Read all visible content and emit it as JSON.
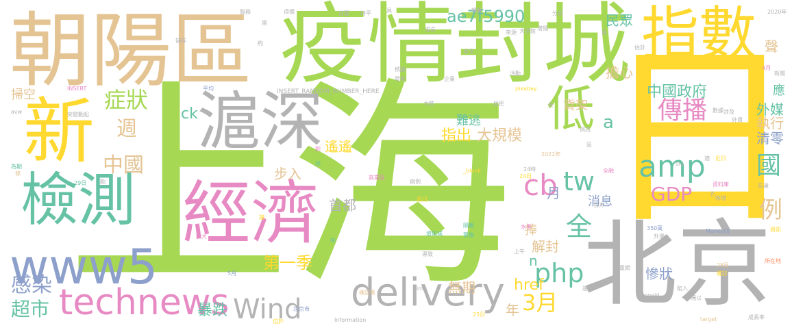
{
  "palette": {
    "green": "#a6d854",
    "tan": "#e5c494",
    "yellow": "#ffd92f",
    "gray": "#b3b3b3",
    "teal": "#66c2a5",
    "blue": "#8da0cb",
    "pink": "#e78ac3",
    "orange": "#fc8d62"
  },
  "words": [
    {
      "text": "上海",
      "color": "green",
      "vertical": false
    },
    {
      "text": "日",
      "color": "yellow",
      "vertical": false
    },
    {
      "text": "疫情封城",
      "color": "green",
      "vertical": false
    },
    {
      "text": "朝陽區",
      "color": "tan",
      "vertical": false
    },
    {
      "text": "指數",
      "color": "yellow",
      "vertical": false
    },
    {
      "text": "北京",
      "color": "gray",
      "vertical": false
    },
    {
      "text": "新",
      "color": "yellow",
      "vertical": false
    },
    {
      "text": "滬深",
      "color": "gray",
      "vertical": false
    },
    {
      "text": "經濟",
      "color": "pink",
      "vertical": false
    },
    {
      "text": "檢測",
      "color": "teal",
      "vertical": false
    },
    {
      "text": "www5",
      "color": "blue",
      "vertical": false
    },
    {
      "text": "technews",
      "color": "pink",
      "vertical": false
    },
    {
      "text": "delivery",
      "color": "gray",
      "vertical": false
    },
    {
      "text": "低",
      "color": "green",
      "vertical": false
    },
    {
      "text": "傳播",
      "color": "pink",
      "vertical": false
    },
    {
      "text": "amp",
      "color": "teal",
      "vertical": false
    },
    {
      "text": "www",
      "color": "green",
      "vertical": false
    },
    {
      "text": "php",
      "color": "teal",
      "vertical": false
    },
    {
      "text": "Wind",
      "color": "gray",
      "vertical": false
    },
    {
      "text": "cb",
      "color": "pink",
      "vertical": false
    },
    {
      "text": "tw",
      "color": "teal",
      "vertical": false
    },
    {
      "text": "GDP",
      "color": "pink",
      "vertical": false
    },
    {
      "text": "中國政府",
      "color": "teal",
      "vertical": false
    },
    {
      "text": "症狀",
      "color": "green",
      "vertical": false
    },
    {
      "text": "中國",
      "color": "tan",
      "vertical": false
    },
    {
      "text": "週",
      "color": "tan",
      "vertical": false
    },
    {
      "text": "感染",
      "color": "blue",
      "vertical": false
    },
    {
      "text": "超市",
      "color": "teal",
      "vertical": false
    },
    {
      "text": "暴跌",
      "color": "teal",
      "vertical": false
    },
    {
      "text": "3月",
      "color": "yellow",
      "vertical": false
    },
    {
      "text": "ae7f5990",
      "color": "teal",
      "vertical": false
    },
    {
      "text": "第一季",
      "color": "yellow",
      "vertical": false
    },
    {
      "text": "指出",
      "color": "yellow",
      "vertical": false
    },
    {
      "text": "大規模",
      "color": "tan",
      "vertical": false
    },
    {
      "text": "國",
      "color": "teal",
      "vertical": true
    },
    {
      "text": "例",
      "color": "tan",
      "vertical": false
    },
    {
      "text": "全",
      "color": "teal",
      "vertical": false
    },
    {
      "text": "首都",
      "color": "gray",
      "vertical": false
    },
    {
      "text": "步入",
      "color": "tan",
      "vertical": false
    },
    {
      "text": "掃空",
      "color": "tan",
      "vertical": false
    },
    {
      "text": "ck",
      "color": "teal",
      "vertical": false
    },
    {
      "text": "a",
      "color": "teal",
      "vertical": false
    },
    {
      "text": "href",
      "color": "yellow",
      "vertical": false
    },
    {
      "text": "無期",
      "color": "tan",
      "vertical": false
    },
    {
      "text": "年",
      "color": "tan",
      "vertical": false
    },
    {
      "text": "n",
      "color": "teal",
      "vertical": false
    },
    {
      "text": "月",
      "color": "blue",
      "vertical": false
    },
    {
      "text": "遙遙",
      "color": "yellow",
      "vertical": false
    },
    {
      "text": "難逃",
      "color": "teal",
      "vertical": false
    },
    {
      "text": "民眾",
      "color": "teal",
      "vertical": false
    },
    {
      "text": "擔心",
      "color": "tan",
      "vertical": false
    },
    {
      "text": "外媒",
      "color": "teal",
      "vertical": false
    },
    {
      "text": "執行",
      "color": "tan",
      "vertical": false
    },
    {
      "text": "清零",
      "color": "blue",
      "vertical": false
    },
    {
      "text": "解封",
      "color": "tan",
      "vertical": false
    },
    {
      "text": "慘狀",
      "color": "blue",
      "vertical": false
    },
    {
      "text": "消息",
      "color": "blue",
      "vertical": false
    },
    {
      "text": "貨架",
      "color": "tan",
      "vertical": false
    },
    {
      "text": "聲",
      "color": "tan",
      "vertical": false
    },
    {
      "text": "應",
      "color": "teal",
      "vertical": false
    },
    {
      "text": "捧",
      "color": "tan",
      "vertical": false
    },
    {
      "text": "INSERT_RANDOM_NUMBER_HERE",
      "color": "gray",
      "vertical": false
    },
    {
      "text": "MoneyDJ",
      "color": "blue",
      "vertical": false
    },
    {
      "text": "2020年",
      "color": "gray",
      "vertical": false
    },
    {
      "text": "pixabay",
      "color": "yellow",
      "vertical": false
    },
    {
      "text": "Information",
      "color": "gray",
      "vertical": false
    },
    {
      "text": "zoneid",
      "color": "gray",
      "vertical": false
    },
    {
      "text": "target",
      "color": "tan",
      "vertical": false
    },
    {
      "text": "成長率",
      "color": "gray",
      "vertical": false
    },
    {
      "text": "350萬",
      "color": "blue",
      "vertical": false
    },
    {
      "text": "_blank",
      "color": "yellow",
      "vertical": false
    },
    {
      "text": "INSERT",
      "color": "pink",
      "vertical": false
    },
    {
      "text": "avw",
      "color": "gray",
      "vertical": false
    },
    {
      "text": "突發動起",
      "color": "gray",
      "vertical": false
    },
    {
      "text": "為期",
      "color": "teal",
      "vertical": false
    },
    {
      "text": "條",
      "color": "tan",
      "vertical": false
    },
    {
      "text": "29日",
      "color": "teal",
      "vertical": false
    },
    {
      "text": "2022年",
      "color": "tan",
      "vertical": false
    },
    {
      "text": "24時",
      "color": "gray",
      "vertical": false
    },
    {
      "text": "24日",
      "color": "yellow",
      "vertical": false
    },
    {
      "text": "28日",
      "color": "tan",
      "vertical": false
    },
    {
      "text": "25日",
      "color": "yellow",
      "vertical": false
    },
    {
      "text": "4月",
      "color": "pink",
      "vertical": false
    },
    {
      "text": "5月",
      "color": "blue",
      "vertical": false
    },
    {
      "text": "官方",
      "color": "gray",
      "vertical": false
    },
    {
      "text": "全融",
      "color": "pink",
      "vertical": false
    },
    {
      "text": "資料庫",
      "color": "pink",
      "vertical": false
    },
    {
      "text": "長遠",
      "color": "gray",
      "vertical": false
    },
    {
      "text": "新增",
      "color": "gray",
      "vertical": false
    },
    {
      "text": "升遷",
      "color": "gray",
      "vertical": false
    },
    {
      "text": "資訊",
      "color": "yellow",
      "vertical": false
    },
    {
      "text": "所在地",
      "color": "orange",
      "vertical": false
    },
    {
      "text": "確診",
      "color": "yellow",
      "vertical": false
    },
    {
      "text": "確診者",
      "color": "tan",
      "vertical": false
    },
    {
      "text": "水準",
      "color": "pink",
      "vertical": false
    },
    {
      "text": "上午",
      "color": "gray",
      "vertical": false
    },
    {
      "text": "導致",
      "color": "gray",
      "vertical": false
    },
    {
      "text": "增無減",
      "color": "teal",
      "vertical": false
    },
    {
      "text": "實施",
      "color": "teal",
      "vertical": false
    },
    {
      "text": "隔離",
      "color": "teal",
      "vertical": false
    },
    {
      "text": "病例",
      "color": "gray",
      "vertical": false
    },
    {
      "text": "周日",
      "color": "yellow",
      "vertical": false
    },
    {
      "text": "商業區",
      "color": "pink",
      "vertical": false
    },
    {
      "text": "北京市",
      "color": "blue",
      "vertical": false
    },
    {
      "text": "位於",
      "color": "yellow",
      "vertical": false
    },
    {
      "text": "img",
      "color": "gray",
      "vertical": false
    },
    {
      "text": "src",
      "color": "gray",
      "vertical": false
    },
    {
      "text": "恐",
      "color": "teal",
      "vertical": false
    },
    {
      "text": "擴大",
      "color": "pink",
      "vertical": false
    },
    {
      "text": "鏈",
      "color": "yellow",
      "vertical": false
    },
    {
      "text": "點",
      "color": "gray",
      "vertical": false
    },
    {
      "text": "創",
      "color": "pink",
      "vertical": false
    },
    {
      "text": "中",
      "color": "teal",
      "vertical": false
    },
    {
      "text": "大跌",
      "color": "gray",
      "vertical": false
    },
    {
      "text": "居民",
      "color": "gray",
      "vertical": false
    },
    {
      "text": "企業",
      "color": "gray",
      "vertical": false
    },
    {
      "text": "發佈",
      "color": "gray",
      "vertical": false
    },
    {
      "text": "核酸",
      "color": "gray",
      "vertical": false
    },
    {
      "text": "平均",
      "color": "blue",
      "vertical": false
    },
    {
      "text": "本文",
      "color": "gray",
      "vertical": false
    },
    {
      "text": "活動",
      "color": "gray",
      "vertical": false
    },
    {
      "text": "數據",
      "color": "gray",
      "vertical": false
    },
    {
      "text": "外資",
      "color": "gray",
      "vertical": false
    },
    {
      "text": "涉及",
      "color": "gray",
      "vertical": false
    },
    {
      "text": "例為",
      "color": "gray",
      "vertical": false
    },
    {
      "text": "區",
      "color": "gray",
      "vertical": false
    },
    {
      "text": "名",
      "color": "gray",
      "vertical": false
    },
    {
      "text": "近日",
      "color": "yellow",
      "vertical": false
    },
    {
      "text": "適",
      "color": "gray",
      "vertical": false
    },
    {
      "text": "新聞",
      "color": "gray",
      "vertical": false
    },
    {
      "text": "估計",
      "color": "gray",
      "vertical": false
    },
    {
      "text": "增幅",
      "color": "gray",
      "vertical": false
    },
    {
      "text": "大使館",
      "color": "gray",
      "vertical": false
    },
    {
      "text": "來源",
      "color": "gray",
      "vertical": false
    },
    {
      "text": "成長",
      "color": "gray",
      "vertical": false
    },
    {
      "text": "首圖",
      "color": "gray",
      "vertical": false
    },
    {
      "text": "得價",
      "color": "gray",
      "vertical": false
    },
    {
      "text": "持平",
      "color": "gray",
      "vertical": false
    },
    {
      "text": "具",
      "color": "gray",
      "vertical": false
    },
    {
      "text": "轉載",
      "color": "gray",
      "vertical": false
    },
    {
      "text": "分居",
      "color": "gray",
      "vertical": false
    },
    {
      "text": "服務",
      "color": "gray",
      "vertical": false
    },
    {
      "text": "約",
      "color": "gray",
      "vertical": false
    },
    {
      "text": "盛",
      "color": "gray",
      "vertical": false
    },
    {
      "text": "天",
      "color": "gray",
      "vertical": false
    },
    {
      "text": "萬",
      "color": "gray",
      "vertical": false
    },
    {
      "text": "隔以",
      "color": "gray",
      "vertical": false
    },
    {
      "text": "陷入",
      "color": "gray",
      "vertical": false
    },
    {
      "text": "趙新",
      "color": "gray",
      "vertical": false
    },
    {
      "text": "重網",
      "color": "gray",
      "vertical": false
    },
    {
      "text": "儲存",
      "color": "gray",
      "vertical": false
    }
  ]
}
